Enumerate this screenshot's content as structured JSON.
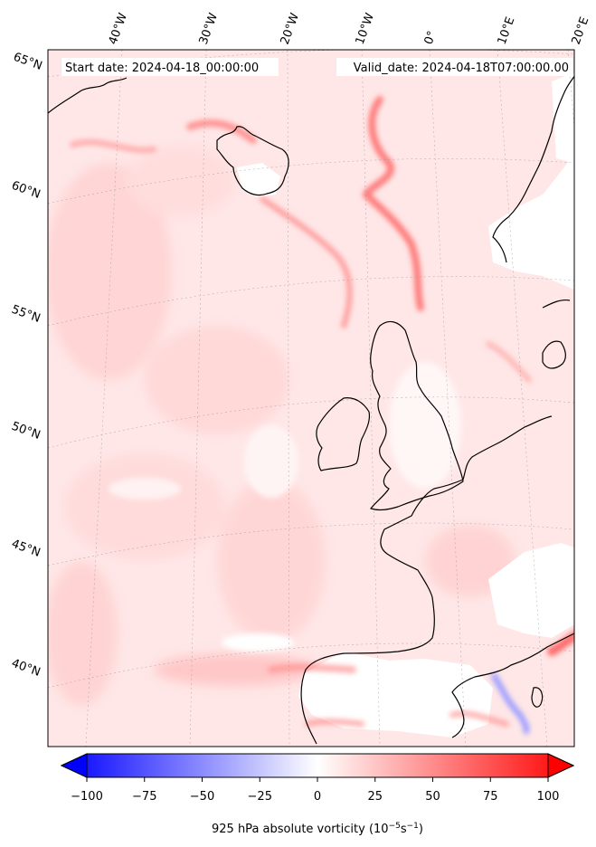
{
  "header": {
    "start_label": "Start date: 2024-04-18_00:00:00",
    "valid_label": "Valid_date: 2024-04-18T07:00:00.00"
  },
  "grid": {
    "lon_labels": [
      "40°W",
      "30°W",
      "20°W",
      "10°W",
      "0°",
      "10°E",
      "20°E"
    ],
    "lat_labels": [
      "65°N",
      "60°N",
      "55°N",
      "50°N",
      "45°N",
      "40°N"
    ]
  },
  "colorbar": {
    "ticks": [
      "−100",
      "−75",
      "−50",
      "−25",
      "0",
      "25",
      "50",
      "75",
      "100"
    ],
    "label": "925 hPa absolute vorticity (10",
    "label_exp1": "−5",
    "label_mid": "s",
    "label_exp2": "−1",
    "label_end": ")",
    "min": -100,
    "max": 100,
    "colors": {
      "negative": "#0000ff",
      "zero": "#ffffff",
      "positive": "#ff0000"
    }
  }
}
